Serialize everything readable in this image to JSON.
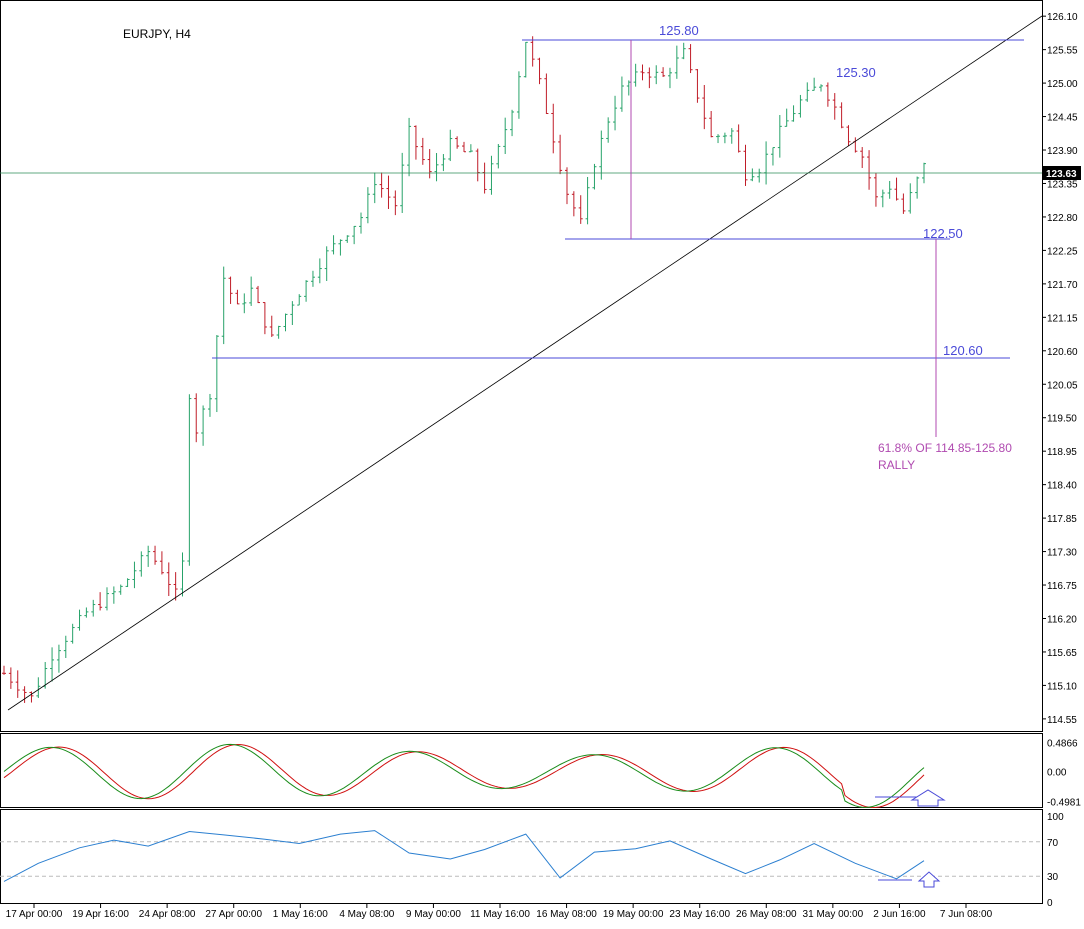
{
  "chart_data": [
    {
      "type": "ohlc",
      "title": "EURJPY, H4",
      "symbol": "EURJPY",
      "timeframe": "H4",
      "current_price": "123.63",
      "ylim": [
        114.4,
        126.3
      ],
      "y_tick_labels": [
        "126.10",
        "125.55",
        "125.00",
        "124.45",
        "123.90",
        "123.35",
        "122.80",
        "122.25",
        "121.70",
        "121.15",
        "120.60",
        "120.05",
        "119.50",
        "118.95",
        "118.40",
        "117.85",
        "117.30",
        "116.75",
        "116.20",
        "115.65",
        "115.10",
        "114.55"
      ],
      "x_tick_labels": [
        "17 Apr 00:00",
        "19 Apr 16:00",
        "24 Apr 08:00",
        "27 Apr 00:00",
        "1 May 16:00",
        "4 May 08:00",
        "9 May 00:00",
        "11 May 16:00",
        "16 May 08:00",
        "19 May 00:00",
        "23 May 16:00",
        "26 May 08:00",
        "31 May 00:00",
        "2 Jun 16:00",
        "7 Jun 08:00"
      ],
      "price_path": [
        [
          0,
          115.3
        ],
        [
          4,
          114.9
        ],
        [
          7,
          115.6
        ],
        [
          12,
          116.3
        ],
        [
          17,
          116.7
        ],
        [
          21,
          117.3
        ],
        [
          23,
          117.0
        ],
        [
          25,
          116.6
        ],
        [
          26,
          117.1
        ],
        [
          26.5,
          120.2
        ],
        [
          28,
          119.3
        ],
        [
          30,
          119.9
        ],
        [
          32,
          121.8
        ],
        [
          34,
          121.3
        ],
        [
          36,
          121.6
        ],
        [
          39,
          120.8
        ],
        [
          42,
          121.4
        ],
        [
          47,
          122.2
        ],
        [
          52,
          122.8
        ],
        [
          54,
          123.4
        ],
        [
          57,
          123.0
        ],
        [
          59,
          124.2
        ],
        [
          62,
          123.5
        ],
        [
          65,
          124.0
        ],
        [
          68,
          123.8
        ],
        [
          70,
          123.3
        ],
        [
          72,
          123.9
        ],
        [
          74,
          124.6
        ],
        [
          76,
          125.7
        ],
        [
          78,
          125.0
        ],
        [
          80,
          124.1
        ],
        [
          82,
          123.2
        ],
        [
          84,
          122.7
        ],
        [
          86,
          123.7
        ],
        [
          88,
          124.4
        ],
        [
          90,
          124.9
        ],
        [
          93,
          125.2
        ],
        [
          96,
          125.1
        ],
        [
          99,
          125.5
        ],
        [
          101,
          124.8
        ],
        [
          103,
          124.1
        ],
        [
          106,
          124.2
        ],
        [
          108,
          123.5
        ],
        [
          110,
          123.6
        ],
        [
          113,
          124.2
        ],
        [
          116,
          124.7
        ],
        [
          119,
          125.0
        ],
        [
          121,
          124.6
        ],
        [
          123,
          124.1
        ],
        [
          125,
          123.8
        ],
        [
          127,
          123.1
        ],
        [
          129,
          123.3
        ],
        [
          131,
          122.9
        ],
        [
          133,
          123.4
        ],
        [
          134,
          123.63
        ]
      ]
    },
    {
      "type": "line",
      "name": "stochastic",
      "y_tick_labels": [
        "0.4866",
        "0.00",
        "-0.4981"
      ],
      "ylim": [
        -0.56,
        0.56
      ]
    },
    {
      "type": "line",
      "name": "rsi",
      "y_tick_labels": [
        "100",
        "70",
        "30",
        "0"
      ],
      "levels": [
        70,
        30
      ],
      "ylim": [
        0,
        100
      ],
      "series": [
        {
          "x": [
            0,
            5,
            11,
            16,
            21,
            27,
            32,
            38,
            43,
            49,
            54,
            59,
            65,
            70,
            76,
            81,
            86,
            92,
            97,
            103,
            108,
            113,
            118,
            124,
            130,
            134
          ],
          "values": [
            24,
            45,
            63,
            72,
            65,
            82,
            78,
            73,
            68,
            79,
            83,
            57,
            50,
            61,
            79,
            28,
            58,
            62,
            71,
            50,
            33,
            49,
            68,
            45,
            27,
            48
          ]
        }
      ]
    }
  ],
  "annotations": {
    "level_125_80": "125.80",
    "level_125_30": "125.30",
    "level_122_50": "122.50",
    "level_120_60": "120.60",
    "fib_line1": "61.8% OF 114.85-125.80",
    "fib_line2": "RALLY"
  },
  "colors": {
    "bull": "#26a269",
    "bear": "#c01c28",
    "annotation_blue": "#4a4ad8",
    "fib": "#b04ab0",
    "stoch_main": "#1a8c1a",
    "stoch_signal": "#d01010",
    "rsi": "#2b7fd0",
    "grid_dash": "#bbbbbb"
  }
}
